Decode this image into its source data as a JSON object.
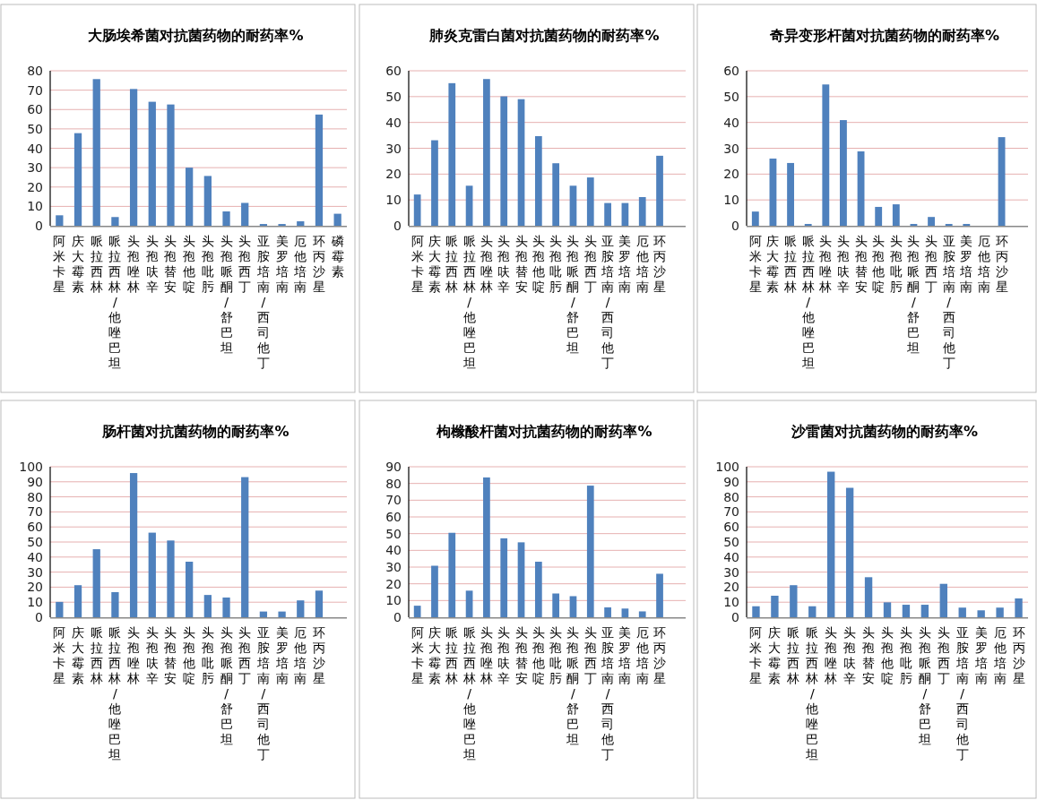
{
  "chart_data": [
    {
      "type": "bar",
      "title": "大肠埃希菌对抗菌药物的耐药率%",
      "categories": [
        "阿米卡星",
        "庆大霉素",
        "哌拉西林",
        "哌拉西林/他唑巴坦",
        "头孢唑林",
        "头孢呋辛",
        "头孢替安",
        "头孢他啶",
        "头孢吡肟",
        "头孢哌酮/舒巴坦",
        "头孢西丁",
        "亚胺培南/西司他丁",
        "美罗培南",
        "厄他培南",
        "环丙沙星",
        "磷霉素"
      ],
      "values": [
        5.4,
        47.8,
        75.7,
        4.5,
        70.6,
        64,
        62.6,
        30,
        25.7,
        7.4,
        11.8,
        0.9,
        0.9,
        2.3,
        57.4,
        6.2
      ],
      "color": "#4f81bd",
      "ylim": [
        0,
        80
      ],
      "yticks": [
        0,
        10,
        20,
        30,
        40,
        50,
        60,
        70,
        80
      ],
      "grid": "y"
    },
    {
      "type": "bar",
      "title": "肺炎克雷白菌对抗菌药物的耐药率%",
      "categories": [
        "阿米卡星",
        "庆大霉素",
        "哌拉西林",
        "哌拉西林/他唑巴坦",
        "头孢唑林",
        "头孢呋辛",
        "头孢替安",
        "头孢他啶",
        "头孢吡肟",
        "头孢哌酮/舒巴坦",
        "头孢西丁",
        "亚胺培南/西司他丁",
        "美罗培南",
        "厄他培南",
        "环丙沙星",
        null
      ],
      "values": [
        12.1,
        33.1,
        55.2,
        15.5,
        56.8,
        50.1,
        49,
        34.7,
        24.2,
        15.5,
        18.7,
        8.8,
        8.8,
        11.1,
        27.1,
        null
      ],
      "color": "#4f81bd",
      "ylim": [
        0,
        60
      ],
      "yticks": [
        0,
        10,
        20,
        30,
        40,
        50,
        60
      ],
      "grid": "y"
    },
    {
      "type": "bar",
      "title": "奇异变形杆菌对抗菌药物的耐药率%",
      "categories": [
        "阿米卡星",
        "庆大霉素",
        "哌拉西林",
        "哌拉西林/他唑巴坦",
        "头孢唑林",
        "头孢呋辛",
        "头孢替安",
        "头孢他啶",
        "头孢吡肟",
        "头孢哌酮/舒巴坦",
        "头孢西丁",
        "亚胺培南/西司他丁",
        "美罗培南",
        "厄他培南",
        "环丙沙星",
        null
      ],
      "values": [
        5.5,
        26,
        24.3,
        0.7,
        54.7,
        40.9,
        28.8,
        7.3,
        8.3,
        0.7,
        3.4,
        0.7,
        0.7,
        0,
        34.3,
        null
      ],
      "color": "#4f81bd",
      "ylim": [
        0,
        60
      ],
      "yticks": [
        0,
        10,
        20,
        30,
        40,
        50,
        60
      ],
      "grid": "y"
    },
    {
      "type": "bar",
      "title": "肠杆菌对抗菌药物的耐药率%",
      "categories": [
        "阿米卡星",
        "庆大霉素",
        "哌拉西林",
        "哌拉西林/他唑巴坦",
        "头孢唑林",
        "头孢呋辛",
        "头孢替安",
        "头孢他啶",
        "头孢吡肟",
        "头孢哌酮/舒巴坦",
        "头孢西丁",
        "亚胺培南/西司他丁",
        "美罗培南",
        "厄他培南",
        "环丙沙星",
        null
      ],
      "values": [
        10.2,
        21.3,
        45.2,
        16.7,
        95.8,
        56.2,
        51,
        36.9,
        14.8,
        13.1,
        93.1,
        3.8,
        3.8,
        11.2,
        17.7,
        null
      ],
      "color": "#4f81bd",
      "ylim": [
        0,
        100
      ],
      "yticks": [
        0,
        10,
        20,
        30,
        40,
        50,
        60,
        70,
        80,
        90,
        100
      ],
      "grid": "y"
    },
    {
      "type": "bar",
      "title": "枸橼酸杆菌对抗菌药物的耐药率%",
      "categories": [
        "阿米卡星",
        "庆大霉素",
        "哌拉西林",
        "哌拉西林/他唑巴坦",
        "头孢唑林",
        "头孢呋辛",
        "头孢替安",
        "头孢他啶",
        "头孢吡肟",
        "头孢哌酮/舒巴坦",
        "头孢西丁",
        "亚胺培南/西司他丁",
        "美罗培南",
        "厄他培南",
        "环丙沙星",
        null
      ],
      "values": [
        6.9,
        30.8,
        50.5,
        15.9,
        83.6,
        47.2,
        44.8,
        33.2,
        14.2,
        12.6,
        78.7,
        5.9,
        5.2,
        3.5,
        26,
        null
      ],
      "color": "#4f81bd",
      "ylim": [
        0,
        90
      ],
      "yticks": [
        0,
        10,
        20,
        30,
        40,
        50,
        60,
        70,
        80,
        90
      ],
      "grid": "y"
    },
    {
      "type": "bar",
      "title": "沙雷菌对抗菌药物的耐药率%",
      "categories": [
        "阿米卡星",
        "庆大霉素",
        "哌拉西林",
        "哌拉西林/他唑巴坦",
        "头孢唑林",
        "头孢呋辛",
        "头孢替安",
        "头孢他啶",
        "头孢吡肟",
        "头孢哌酮/舒巴坦",
        "头孢西丁",
        "亚胺培南/西司他丁",
        "美罗培南",
        "厄他培南",
        "环丙沙星"
      ],
      "values": [
        7.3,
        14.3,
        21.3,
        7.3,
        96.7,
        86,
        26.6,
        9.9,
        8.3,
        8.3,
        22.2,
        6.4,
        4.6,
        6.4,
        12.5
      ],
      "color": "#4f81bd",
      "ylim": [
        0,
        100
      ],
      "yticks": [
        0,
        10,
        20,
        30,
        40,
        50,
        60,
        70,
        80,
        90,
        100
      ],
      "grid": "y"
    }
  ]
}
